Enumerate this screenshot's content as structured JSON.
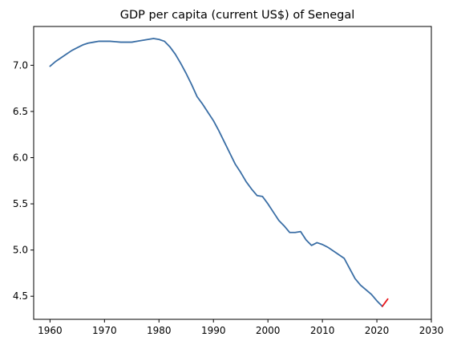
{
  "chart_data": {
    "type": "line",
    "title": "GDP per capita (current US$) of Senegal",
    "xlabel": "",
    "ylabel": "",
    "xlim": [
      1957,
      2030
    ],
    "ylim": [
      4.25,
      7.42
    ],
    "xticks": [
      1960,
      1970,
      1980,
      1990,
      2000,
      2010,
      2020,
      2030
    ],
    "yticks": [
      4.5,
      5.0,
      5.5,
      6.0,
      6.5,
      7.0
    ],
    "grid": false,
    "legend": "none",
    "series": [
      {
        "color": "#3a6ea5",
        "x": [
          1960,
          1961,
          1962,
          1963,
          1964,
          1965,
          1966,
          1967,
          1968,
          1969,
          1970,
          1971,
          1972,
          1973,
          1974,
          1975,
          1976,
          1977,
          1978,
          1979,
          1980,
          1981,
          1982,
          1983,
          1984,
          1985,
          1986,
          1987,
          1988,
          1989,
          1990,
          1991,
          1992,
          1993,
          1994,
          1995,
          1996,
          1997,
          1998,
          1999,
          2000,
          2001,
          2002,
          2003,
          2004,
          2005,
          2006,
          2007,
          2008,
          2009,
          2010,
          2011,
          2012,
          2013,
          2014,
          2015,
          2016,
          2017,
          2018,
          2019,
          2020,
          2021
        ],
        "y": [
          6.99,
          7.04,
          7.08,
          7.12,
          7.16,
          7.19,
          7.22,
          7.24,
          7.25,
          7.26,
          7.26,
          7.26,
          7.255,
          7.25,
          7.25,
          7.25,
          7.26,
          7.27,
          7.28,
          7.29,
          7.28,
          7.26,
          7.2,
          7.12,
          7.02,
          6.91,
          6.79,
          6.66,
          6.58,
          6.49,
          6.4,
          6.29,
          6.17,
          6.05,
          5.93,
          5.84,
          5.74,
          5.66,
          5.59,
          5.58,
          5.5,
          5.41,
          5.32,
          5.26,
          5.19,
          5.19,
          5.2,
          5.11,
          5.05,
          5.08,
          5.06,
          5.03,
          4.99,
          4.95,
          4.91,
          4.8,
          4.69,
          4.62,
          4.57,
          4.52,
          4.45,
          4.39
        ]
      },
      {
        "color": "#e8161b",
        "x": [
          2021,
          2022
        ],
        "y": [
          4.39,
          4.47
        ]
      }
    ]
  }
}
